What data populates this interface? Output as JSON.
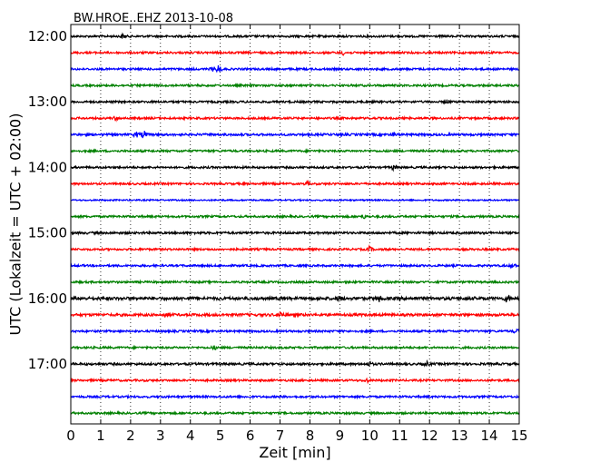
{
  "chart_data": {
    "type": "line",
    "title": "BW.HROE..EHZ 2013-10-08",
    "xlabel": "Zeit  [min]",
    "ylabel": "UTC (Lokalzeit = UTC + 02:00)",
    "xlim": [
      0,
      15
    ],
    "x_ticks": [
      0,
      1,
      2,
      3,
      4,
      5,
      6,
      7,
      8,
      9,
      10,
      11,
      12,
      13,
      14,
      15
    ],
    "x_tick_labels": [
      "0",
      "1",
      "2",
      "3",
      "4",
      "5",
      "6",
      "7",
      "8",
      "9",
      "10",
      "11",
      "12",
      "13",
      "14",
      "15"
    ],
    "y_tick_labels": [
      "12:00",
      "13:00",
      "14:00",
      "15:00",
      "16:00",
      "17:00"
    ],
    "traces_per_hour": 4,
    "trace_colors": [
      "#000000",
      "#ff0000",
      "#0000ff",
      "#008000"
    ],
    "grid": {
      "vertical": true,
      "style": "dotted"
    },
    "traces": [
      {
        "start": "12:00",
        "amplitude": 1.0,
        "events": [
          {
            "t": 1.75,
            "a": 2.2
          }
        ]
      },
      {
        "start": "12:15",
        "amplitude": 1.0,
        "events": [
          {
            "t": 9.1,
            "a": 1.8
          }
        ]
      },
      {
        "start": "12:30",
        "amplitude": 1.0,
        "events": [
          {
            "t": 4.95,
            "a": 4.0
          },
          {
            "t": 4.75,
            "a": 2.0
          }
        ]
      },
      {
        "start": "12:45",
        "amplitude": 1.0,
        "events": []
      },
      {
        "start": "13:00",
        "amplitude": 1.0,
        "events": [
          {
            "t": 12.6,
            "a": 1.6
          }
        ]
      },
      {
        "start": "13:15",
        "amplitude": 1.0,
        "events": [
          {
            "t": 1.5,
            "a": 1.5
          }
        ]
      },
      {
        "start": "13:30",
        "amplitude": 1.1,
        "events": [
          {
            "t": 2.45,
            "a": 4.0
          },
          {
            "t": 2.2,
            "a": 2.2
          },
          {
            "t": 10.8,
            "a": 1.8
          }
        ]
      },
      {
        "start": "13:45",
        "amplitude": 1.0,
        "events": []
      },
      {
        "start": "14:00",
        "amplitude": 1.0,
        "events": [
          {
            "t": 10.8,
            "a": 2.2
          }
        ]
      },
      {
        "start": "14:15",
        "amplitude": 1.0,
        "events": [
          {
            "t": 7.9,
            "a": 1.6
          }
        ]
      },
      {
        "start": "14:30",
        "amplitude": 0.7,
        "events": []
      },
      {
        "start": "14:45",
        "amplitude": 1.0,
        "events": [
          {
            "t": 9.8,
            "a": 1.6
          }
        ]
      },
      {
        "start": "15:00",
        "amplitude": 1.1,
        "events": []
      },
      {
        "start": "15:15",
        "amplitude": 1.0,
        "events": [
          {
            "t": 10.0,
            "a": 2.6
          }
        ]
      },
      {
        "start": "15:30",
        "amplitude": 1.0,
        "events": [
          {
            "t": 14.8,
            "a": 1.8
          }
        ]
      },
      {
        "start": "15:45",
        "amplitude": 1.0,
        "events": []
      },
      {
        "start": "16:00",
        "amplitude": 1.5,
        "events": [
          {
            "t": 9.0,
            "a": 2.0
          },
          {
            "t": 10.3,
            "a": 2.6
          },
          {
            "t": 14.6,
            "a": 3.4
          }
        ]
      },
      {
        "start": "16:15",
        "amplitude": 1.3,
        "events": [
          {
            "t": 3.2,
            "a": 2.4
          },
          {
            "t": 7.0,
            "a": 3.0
          }
        ]
      },
      {
        "start": "16:30",
        "amplitude": 1.0,
        "events": [
          {
            "t": 14.9,
            "a": 2.0
          }
        ]
      },
      {
        "start": "16:45",
        "amplitude": 1.0,
        "events": [
          {
            "t": 4.8,
            "a": 1.6
          }
        ]
      },
      {
        "start": "17:00",
        "amplitude": 1.1,
        "events": [
          {
            "t": 10.0,
            "a": 2.0
          },
          {
            "t": 11.9,
            "a": 2.0
          }
        ]
      },
      {
        "start": "17:15",
        "amplitude": 1.0,
        "events": [
          {
            "t": 9.9,
            "a": 1.6
          }
        ]
      },
      {
        "start": "17:30",
        "amplitude": 1.0,
        "events": []
      },
      {
        "start": "17:45",
        "amplitude": 1.0,
        "events": []
      }
    ]
  }
}
